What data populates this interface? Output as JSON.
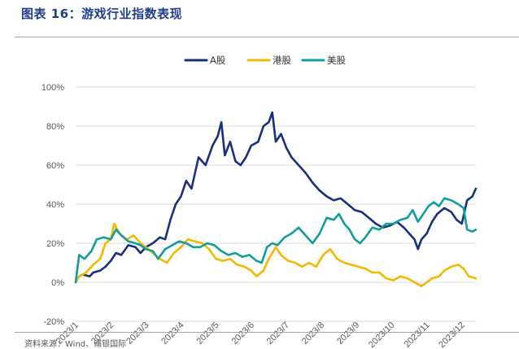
{
  "title": "图表 16：游戏行业指数表现",
  "source": "资料来源：Wind、浦银国际",
  "chart_data": {
    "type": "line",
    "x": [
      "2023/1",
      "2023/2",
      "2023/3",
      "2023/4",
      "2023/5",
      "2023/6",
      "2023/7",
      "2023/8",
      "2023/9",
      "2023/10",
      "2023/11",
      "2023/12"
    ],
    "xlabel": "",
    "ylabel": "",
    "ylim": [
      -20,
      100
    ],
    "yticks": [
      "-20%",
      "0%",
      "20%",
      "40%",
      "60%",
      "80%",
      "100%"
    ],
    "ytick_values": [
      -20,
      0,
      20,
      40,
      60,
      80,
      100
    ],
    "grid": true,
    "legend": "top-center",
    "series": [
      {
        "name": "A股",
        "color": "#1a2f7a",
        "points": [
          [
            0,
            0
          ],
          [
            0.1,
            3
          ],
          [
            0.2,
            4
          ],
          [
            0.4,
            3
          ],
          [
            0.5,
            5
          ],
          [
            0.7,
            6
          ],
          [
            0.85,
            8
          ],
          [
            1.0,
            11
          ],
          [
            1.15,
            15
          ],
          [
            1.3,
            14
          ],
          [
            1.5,
            19
          ],
          [
            1.7,
            18
          ],
          [
            1.85,
            15
          ],
          [
            2.0,
            18
          ],
          [
            2.2,
            20
          ],
          [
            2.4,
            23
          ],
          [
            2.55,
            22
          ],
          [
            2.7,
            32
          ],
          [
            2.85,
            40
          ],
          [
            3.0,
            44
          ],
          [
            3.15,
            52
          ],
          [
            3.3,
            48
          ],
          [
            3.5,
            64
          ],
          [
            3.7,
            60
          ],
          [
            3.9,
            70
          ],
          [
            4.05,
            75
          ],
          [
            4.15,
            82
          ],
          [
            4.25,
            65
          ],
          [
            4.4,
            72
          ],
          [
            4.55,
            62
          ],
          [
            4.7,
            60
          ],
          [
            4.85,
            64
          ],
          [
            5.0,
            70
          ],
          [
            5.2,
            72
          ],
          [
            5.35,
            80
          ],
          [
            5.5,
            82
          ],
          [
            5.6,
            87
          ],
          [
            5.7,
            72
          ],
          [
            5.85,
            76
          ],
          [
            6.0,
            69
          ],
          [
            6.15,
            64
          ],
          [
            6.35,
            60
          ],
          [
            6.55,
            56
          ],
          [
            6.75,
            51
          ],
          [
            6.95,
            47
          ],
          [
            7.15,
            44
          ],
          [
            7.35,
            42
          ],
          [
            7.55,
            43
          ],
          [
            7.75,
            40
          ],
          [
            7.95,
            37
          ],
          [
            8.15,
            36
          ],
          [
            8.35,
            33
          ],
          [
            8.55,
            30
          ],
          [
            8.75,
            28
          ],
          [
            8.95,
            29
          ],
          [
            9.15,
            31
          ],
          [
            9.35,
            28
          ],
          [
            9.5,
            25
          ],
          [
            9.65,
            22
          ],
          [
            9.75,
            17
          ],
          [
            9.85,
            22
          ],
          [
            10.0,
            25
          ],
          [
            10.15,
            31
          ],
          [
            10.3,
            35
          ],
          [
            10.5,
            38
          ],
          [
            10.7,
            36
          ],
          [
            10.85,
            32
          ],
          [
            11.0,
            30
          ],
          [
            11.15,
            42
          ],
          [
            11.3,
            44
          ],
          [
            11.4,
            48
          ]
        ]
      },
      {
        "name": "港股",
        "color": "#f5b800",
        "points": [
          [
            0,
            0
          ],
          [
            0.1,
            3
          ],
          [
            0.3,
            5
          ],
          [
            0.5,
            9
          ],
          [
            0.7,
            12
          ],
          [
            0.85,
            20
          ],
          [
            1.0,
            22
          ],
          [
            1.1,
            30
          ],
          [
            1.25,
            25
          ],
          [
            1.45,
            22
          ],
          [
            1.65,
            24
          ],
          [
            1.85,
            20
          ],
          [
            2.0,
            18
          ],
          [
            2.2,
            15
          ],
          [
            2.4,
            12
          ],
          [
            2.6,
            10
          ],
          [
            2.8,
            15
          ],
          [
            3.0,
            18
          ],
          [
            3.2,
            22
          ],
          [
            3.4,
            21
          ],
          [
            3.6,
            20
          ],
          [
            3.8,
            17
          ],
          [
            4.0,
            12
          ],
          [
            4.2,
            11
          ],
          [
            4.4,
            12
          ],
          [
            4.6,
            9
          ],
          [
            4.8,
            8
          ],
          [
            5.0,
            6
          ],
          [
            5.15,
            3
          ],
          [
            5.35,
            6
          ],
          [
            5.5,
            12
          ],
          [
            5.7,
            18
          ],
          [
            5.85,
            14
          ],
          [
            6.05,
            11
          ],
          [
            6.25,
            10
          ],
          [
            6.45,
            8
          ],
          [
            6.65,
            10
          ],
          [
            6.85,
            8
          ],
          [
            7.05,
            14
          ],
          [
            7.25,
            17
          ],
          [
            7.45,
            12
          ],
          [
            7.65,
            10
          ],
          [
            7.85,
            9
          ],
          [
            8.05,
            8
          ],
          [
            8.25,
            7
          ],
          [
            8.45,
            5
          ],
          [
            8.65,
            5
          ],
          [
            8.85,
            2
          ],
          [
            9.05,
            1
          ],
          [
            9.25,
            3
          ],
          [
            9.45,
            2
          ],
          [
            9.65,
            0
          ],
          [
            9.85,
            -2
          ],
          [
            10.0,
            0
          ],
          [
            10.15,
            2
          ],
          [
            10.35,
            3
          ],
          [
            10.5,
            6
          ],
          [
            10.7,
            8
          ],
          [
            10.9,
            9
          ],
          [
            11.05,
            7
          ],
          [
            11.2,
            3
          ],
          [
            11.4,
            2
          ]
        ]
      },
      {
        "name": "美股",
        "color": "#129c9c",
        "points": [
          [
            0,
            0
          ],
          [
            0.1,
            14
          ],
          [
            0.25,
            12
          ],
          [
            0.45,
            16
          ],
          [
            0.6,
            22
          ],
          [
            0.8,
            23
          ],
          [
            1.0,
            22
          ],
          [
            1.15,
            27
          ],
          [
            1.3,
            24
          ],
          [
            1.5,
            21
          ],
          [
            1.7,
            20
          ],
          [
            1.85,
            19
          ],
          [
            2.0,
            17
          ],
          [
            2.2,
            16
          ],
          [
            2.35,
            12
          ],
          [
            2.55,
            17
          ],
          [
            2.75,
            19
          ],
          [
            2.95,
            21
          ],
          [
            3.15,
            20
          ],
          [
            3.35,
            18
          ],
          [
            3.55,
            18
          ],
          [
            3.75,
            20
          ],
          [
            3.95,
            19
          ],
          [
            4.15,
            16
          ],
          [
            4.35,
            14
          ],
          [
            4.55,
            15
          ],
          [
            4.75,
            13
          ],
          [
            4.95,
            14
          ],
          [
            5.15,
            11
          ],
          [
            5.3,
            10
          ],
          [
            5.45,
            18
          ],
          [
            5.6,
            20
          ],
          [
            5.75,
            19
          ],
          [
            5.95,
            23
          ],
          [
            6.15,
            25
          ],
          [
            6.35,
            28
          ],
          [
            6.55,
            24
          ],
          [
            6.75,
            20
          ],
          [
            6.95,
            25
          ],
          [
            7.15,
            33
          ],
          [
            7.35,
            32
          ],
          [
            7.5,
            35
          ],
          [
            7.65,
            30
          ],
          [
            7.8,
            27
          ],
          [
            7.95,
            22
          ],
          [
            8.1,
            20
          ],
          [
            8.25,
            23
          ],
          [
            8.45,
            28
          ],
          [
            8.65,
            27
          ],
          [
            8.85,
            30
          ],
          [
            9.05,
            30
          ],
          [
            9.25,
            32
          ],
          [
            9.45,
            33
          ],
          [
            9.6,
            37
          ],
          [
            9.75,
            31
          ],
          [
            9.9,
            35
          ],
          [
            10.05,
            39
          ],
          [
            10.2,
            41
          ],
          [
            10.35,
            39
          ],
          [
            10.5,
            43
          ],
          [
            10.7,
            42
          ],
          [
            10.9,
            40
          ],
          [
            11.05,
            38
          ],
          [
            11.15,
            27
          ],
          [
            11.3,
            26
          ],
          [
            11.4,
            27
          ]
        ]
      }
    ]
  }
}
